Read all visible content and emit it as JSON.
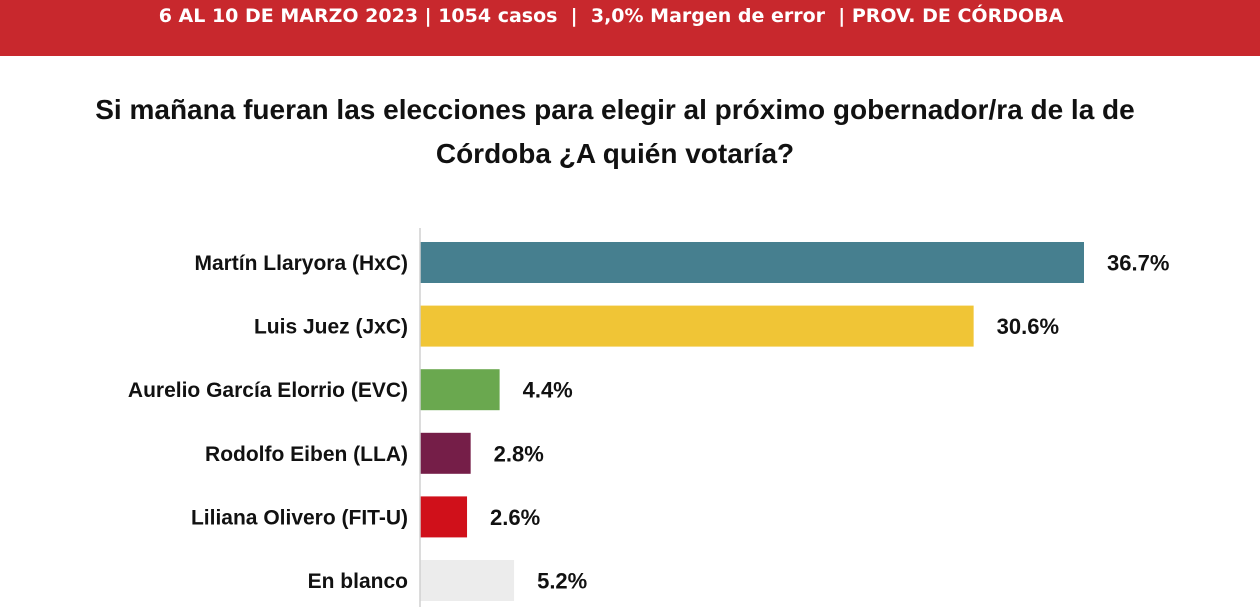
{
  "header": {
    "text": "6 AL 10 DE MARZO 2023 | 1054 casos  |  3,0% Margen de error  | PROV. DE CÓRDOBA"
  },
  "chart_data": {
    "type": "bar",
    "orientation": "horizontal",
    "title": "Si mañana fueran las elecciones para elegir al próximo gobernador/ra de la de Córdoba ¿A quién votaría?",
    "categories": [
      "Martín Llaryora (HxC)",
      "Luis Juez (JxC)",
      "Aurelio García Elorrio (EVC)",
      "Rodolfo Eiben (LLA)",
      "Liliana Olivero (FIT-U)",
      "En blanco"
    ],
    "values": [
      36.7,
      30.6,
      4.4,
      2.8,
      2.6,
      5.2
    ],
    "value_labels": [
      "36.7%",
      "30.6%",
      "4.4%",
      "2.8%",
      "2.6%",
      "5.2%"
    ],
    "colors": [
      "#467f8f",
      "#f0c536",
      "#6aa84f",
      "#751e48",
      "#d0101a",
      "#ececec"
    ],
    "unit": "%",
    "xlim": [
      0,
      36.7
    ],
    "grid": false,
    "legend": "none"
  }
}
